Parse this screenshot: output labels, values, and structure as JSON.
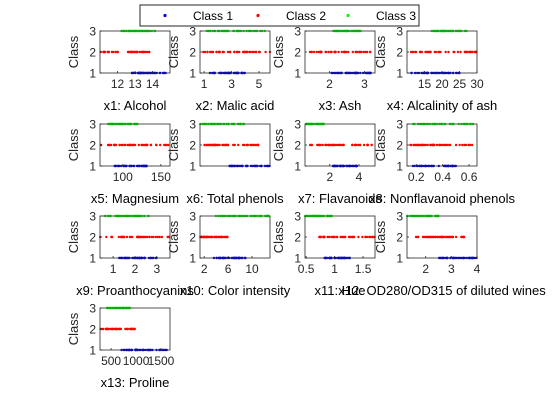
{
  "legend": {
    "entries": [
      {
        "name": "Class 1",
        "color": "#0000ff"
      },
      {
        "name": "Class 2",
        "color": "#ff0000"
      },
      {
        "name": "Class 3",
        "color": "#00ff00"
      }
    ]
  },
  "chart_data": [
    {
      "type": "scatter",
      "xlabel": "x1: Alcohol",
      "ylabel": "Class",
      "xlim": [
        11,
        15
      ],
      "ylim": [
        1,
        3
      ],
      "xticks": [
        12,
        13,
        14
      ],
      "xtick_labels": [
        "12",
        "13",
        "14"
      ],
      "yticks": [
        1,
        2,
        3
      ],
      "class_ranges": {
        "1": [
          12.8,
          14.8
        ],
        "2": [
          11.0,
          13.9
        ],
        "3": [
          12.2,
          14.3
        ]
      }
    },
    {
      "type": "scatter",
      "xlabel": "x2: Malic acid",
      "ylabel": "Class",
      "xlim": [
        0.7,
        5.8
      ],
      "ylim": [
        1,
        3
      ],
      "xticks": [
        1,
        3,
        5
      ],
      "xtick_labels": [
        "1",
        "3",
        "5"
      ],
      "yticks": [
        1,
        2,
        3
      ],
      "class_ranges": {
        "1": [
          1.4,
          4.0
        ],
        "2": [
          0.7,
          5.8
        ],
        "3": [
          1.2,
          5.7
        ]
      }
    },
    {
      "type": "scatter",
      "xlabel": "x3: Ash",
      "ylabel": "Class",
      "xlim": [
        1.3,
        3.3
      ],
      "ylim": [
        1,
        3
      ],
      "xticks": [
        2,
        3
      ],
      "xtick_labels": [
        "2",
        "3"
      ],
      "yticks": [
        1,
        2,
        3
      ],
      "class_ranges": {
        "1": [
          2.0,
          3.2
        ],
        "2": [
          1.4,
          3.2
        ],
        "3": [
          2.1,
          2.9
        ]
      }
    },
    {
      "type": "scatter",
      "xlabel": "x4: Alcalinity of ash",
      "ylabel": "Class",
      "xlim": [
        10,
        30
      ],
      "ylim": [
        1,
        3
      ],
      "xticks": [
        15,
        20,
        25,
        30
      ],
      "xtick_labels": [
        "15",
        "20",
        "25",
        "30"
      ],
      "yticks": [
        1,
        2,
        3
      ],
      "class_ranges": {
        "1": [
          11,
          25
        ],
        "2": [
          10.6,
          30
        ],
        "3": [
          17,
          27
        ]
      }
    },
    {
      "type": "scatter",
      "xlabel": "x5: Magnesium",
      "ylabel": "Class",
      "xlim": [
        70,
        162
      ],
      "ylim": [
        1,
        3
      ],
      "xticks": [
        100,
        150
      ],
      "xtick_labels": [
        "100",
        "150"
      ],
      "yticks": [
        1,
        2,
        3
      ],
      "class_ranges": {
        "1": [
          89,
          132
        ],
        "2": [
          70,
          162
        ],
        "3": [
          80,
          123
        ]
      }
    },
    {
      "type": "scatter",
      "xlabel": "x6: Total phenols",
      "ylabel": "Class",
      "xlim": [
        0.98,
        3.88
      ],
      "ylim": [
        1,
        3
      ],
      "xticks": [],
      "xtick_labels": [],
      "yticks": [
        1,
        2,
        3
      ],
      "class_ranges": {
        "1": [
          2.2,
          3.88
        ],
        "2": [
          1.1,
          3.5
        ],
        "3": [
          0.98,
          2.8
        ]
      }
    },
    {
      "type": "scatter",
      "xlabel": "x7: Flavanoids",
      "ylabel": "Class",
      "xlim": [
        0.3,
        5.1
      ],
      "ylim": [
        1,
        3
      ],
      "xticks": [
        2,
        4
      ],
      "xtick_labels": [
        "2",
        "4"
      ],
      "yticks": [
        1,
        2,
        3
      ],
      "class_ranges": {
        "1": [
          2.2,
          3.9
        ],
        "2": [
          0.6,
          5.1
        ],
        "3": [
          0.3,
          1.6
        ]
      }
    },
    {
      "type": "scatter",
      "xlabel": "x8: Nonflavanoid phenols",
      "ylabel": "Class",
      "xlim": [
        0.13,
        0.66
      ],
      "ylim": [
        1,
        3
      ],
      "xticks": [
        0.2,
        0.4,
        0.6
      ],
      "xtick_labels": [
        "0.2",
        "0.4",
        "0.6"
      ],
      "yticks": [
        1,
        2,
        3
      ],
      "class_ranges": {
        "1": [
          0.17,
          0.5
        ],
        "2": [
          0.13,
          0.66
        ],
        "3": [
          0.17,
          0.63
        ]
      }
    },
    {
      "type": "scatter",
      "xlabel": "x9: Proanthocyanins",
      "ylabel": "Class",
      "xlim": [
        0.4,
        3.6
      ],
      "ylim": [
        1,
        3
      ],
      "xticks": [
        1,
        2,
        3
      ],
      "xtick_labels": [
        "1",
        "2",
        "3"
      ],
      "yticks": [
        1,
        2,
        3
      ],
      "class_ranges": {
        "1": [
          1.2,
          3.0
        ],
        "2": [
          0.4,
          3.6
        ],
        "3": [
          0.5,
          2.7
        ]
      }
    },
    {
      "type": "scatter",
      "xlabel": "x10: Color intensity",
      "ylabel": "Class",
      "xlim": [
        1.3,
        13
      ],
      "ylim": [
        1,
        3
      ],
      "xticks": [
        2,
        6,
        10
      ],
      "xtick_labels": [
        "2",
        "6",
        "10"
      ],
      "yticks": [
        1,
        2,
        3
      ],
      "class_ranges": {
        "1": [
          3.5,
          8.9
        ],
        "2": [
          1.3,
          6.0
        ],
        "3": [
          3.9,
          13
        ]
      }
    },
    {
      "type": "scatter",
      "xlabel": "x11: Hue",
      "ylabel": "Class",
      "xlim": [
        0.48,
        1.71
      ],
      "ylim": [
        1,
        3
      ],
      "xticks": [
        0.5,
        1,
        1.5
      ],
      "xtick_labels": [
        "0.5",
        "1",
        "1.5"
      ],
      "yticks": [
        1,
        2,
        3
      ],
      "class_ranges": {
        "1": [
          0.82,
          1.28
        ],
        "2": [
          0.69,
          1.71
        ],
        "3": [
          0.48,
          0.96
        ]
      }
    },
    {
      "type": "scatter",
      "xlabel": "x12: OD280/OD315 of diluted wines",
      "ylabel": "Class",
      "xlim": [
        1.27,
        4.0
      ],
      "ylim": [
        1,
        3
      ],
      "xticks": [
        2,
        3,
        4
      ],
      "xtick_labels": [
        "2",
        "3",
        "4"
      ],
      "yticks": [
        1,
        2,
        3
      ],
      "class_ranges": {
        "1": [
          2.5,
          4.0
        ],
        "2": [
          1.6,
          3.7
        ],
        "3": [
          1.27,
          2.5
        ]
      }
    },
    {
      "type": "scatter",
      "xlabel": "x13: Proline",
      "ylabel": "Class",
      "xlim": [
        278,
        1680
      ],
      "ylim": [
        1,
        3
      ],
      "xticks": [
        500,
        1000,
        1500
      ],
      "xtick_labels": [
        "500",
        "1000",
        "1500"
      ],
      "yticks": [
        1,
        2,
        3
      ],
      "class_ranges": {
        "1": [
          680,
          1680
        ],
        "2": [
          278,
          985
        ],
        "3": [
          415,
          880
        ]
      }
    }
  ]
}
